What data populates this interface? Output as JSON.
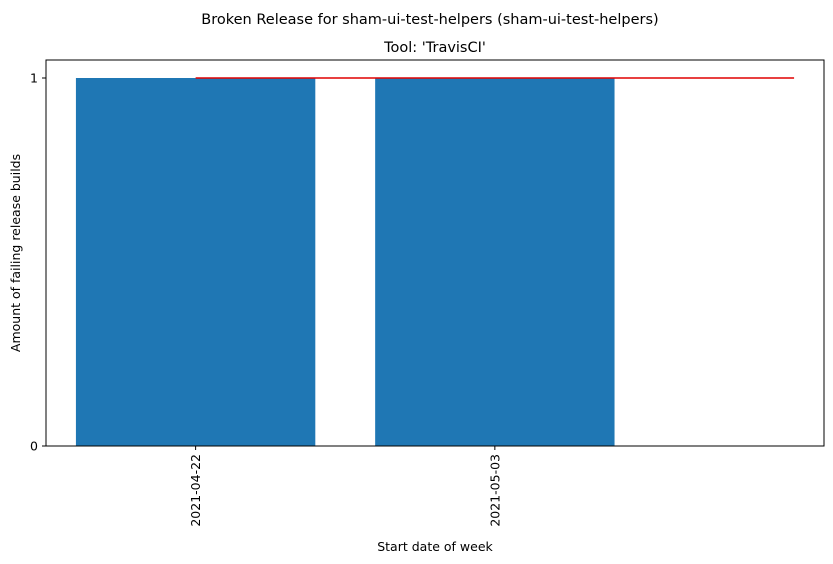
{
  "chart_data": {
    "type": "bar",
    "title": "Broken Release for sham-ui-test-helpers (sham-ui-test-helpers)",
    "subtitle": "Tool: 'TravisCI'",
    "xlabel": "Start date of week",
    "ylabel": "Amount of failing release builds",
    "categories": [
      "2021-04-22",
      "2021-05-03"
    ],
    "values": [
      1,
      1
    ],
    "bar_color": "#1f77b4",
    "line": {
      "x": [
        0,
        2
      ],
      "y": [
        1,
        1
      ],
      "color": "#e00000"
    },
    "x_range": [
      -0.5,
      2.1
    ],
    "ylim": [
      0,
      1
    ],
    "yticks": [
      "0",
      "1"
    ],
    "grid": false,
    "legend": "none"
  }
}
